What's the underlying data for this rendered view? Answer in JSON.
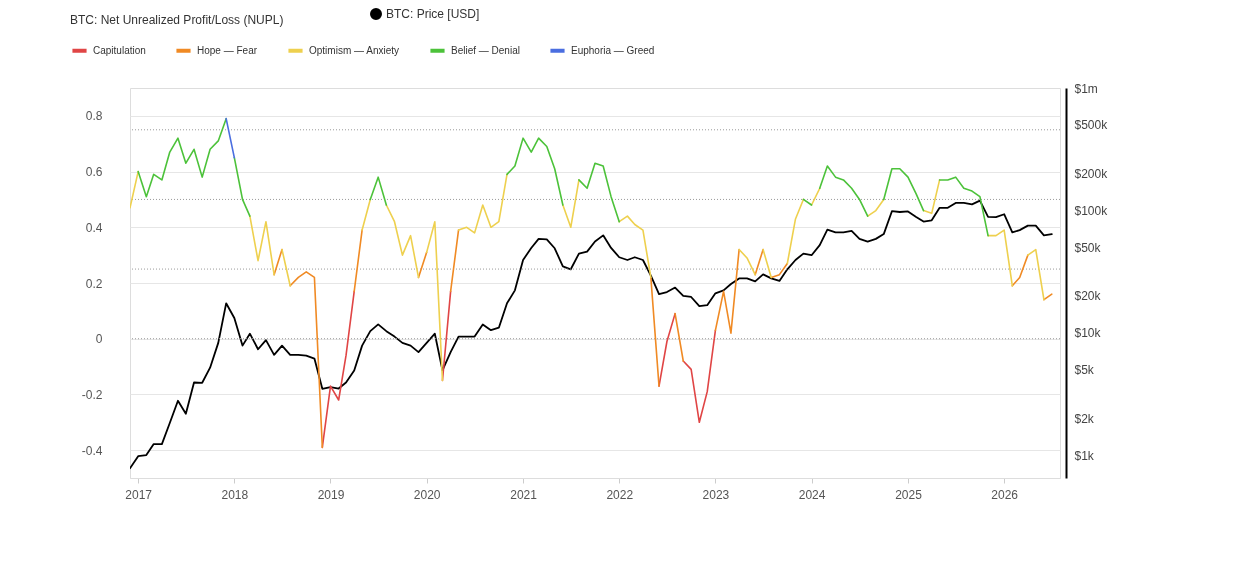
{
  "chart_data": {
    "type": "line",
    "legend_title": "BTC: Net Unrealized Profit/Loss (NUPL)",
    "x": [
      "2016-12",
      "2017-01",
      "2017-02",
      "2017-03",
      "2017-04",
      "2017-05",
      "2017-06",
      "2017-07",
      "2017-08",
      "2017-09",
      "2017-10",
      "2017-11",
      "2017-12",
      "2018-01",
      "2018-02",
      "2018-03",
      "2018-04",
      "2018-05",
      "2018-06",
      "2018-07",
      "2018-08",
      "2018-09",
      "2018-10",
      "2018-11",
      "2018-12",
      "2019-01",
      "2019-02",
      "2019-03",
      "2019-04",
      "2019-05",
      "2019-06",
      "2019-07",
      "2019-08",
      "2019-09",
      "2019-10",
      "2019-11",
      "2019-12",
      "2020-01",
      "2020-02",
      "2020-03",
      "2020-04",
      "2020-05",
      "2020-06",
      "2020-07",
      "2020-08",
      "2020-09",
      "2020-10",
      "2020-11",
      "2020-12",
      "2021-01",
      "2021-02",
      "2021-03",
      "2021-04",
      "2021-05",
      "2021-06",
      "2021-07",
      "2021-08",
      "2021-09",
      "2021-10",
      "2021-11",
      "2021-12",
      "2022-01",
      "2022-02",
      "2022-03",
      "2022-04",
      "2022-05",
      "2022-06",
      "2022-07",
      "2022-08",
      "2022-09",
      "2022-10",
      "2022-11",
      "2022-12",
      "2023-01",
      "2023-02",
      "2023-03",
      "2023-04",
      "2023-05",
      "2023-06",
      "2023-07",
      "2023-08",
      "2023-09",
      "2023-10",
      "2023-11",
      "2023-12",
      "2024-01",
      "2024-02",
      "2024-03",
      "2024-04",
      "2024-05",
      "2024-06",
      "2024-07",
      "2024-08",
      "2024-09",
      "2024-10",
      "2024-11",
      "2024-12",
      "2025-01",
      "2025-02",
      "2025-03",
      "2025-04",
      "2025-05",
      "2025-06",
      "2025-07",
      "2025-08",
      "2025-09",
      "2025-10",
      "2025-11",
      "2025-12",
      "2026-01",
      "2026-02",
      "2026-03",
      "2026-04",
      "2026-05",
      "2026-06",
      "2026-07"
    ],
    "series": [
      {
        "name": "Capitulation",
        "color": "#e04545",
        "x": [
          "2018-12",
          "2019-01",
          "2019-02",
          "2019-03",
          "2019-04",
          null,
          "2020-03",
          "2020-04",
          null,
          "2022-06",
          "2022-07",
          "2022-08",
          null,
          "2022-09",
          "2022-10",
          "2022-11",
          "2022-12",
          "2023-01"
        ],
        "values": [
          -0.39,
          -0.17,
          -0.22,
          -0.06,
          0.17,
          null,
          -0.15,
          0.17,
          null,
          -0.17,
          -0.01,
          0.09,
          null,
          -0.08,
          -0.11,
          -0.3,
          -0.19,
          0.03
        ]
      },
      {
        "name": "Hope — Fear",
        "color": "#f08a24",
        "x": [
          "2018-06",
          "2018-07",
          null,
          "2018-08",
          "2018-09",
          "2018-10",
          "2018-11",
          "2018-12",
          null,
          "2019-04",
          "2019-05",
          null,
          "2019-12",
          "2020-01",
          null,
          "2020-04",
          "2020-05",
          null,
          "2022-05",
          "2022-06",
          null,
          "2022-08",
          "2022-09",
          null,
          "2023-01",
          "2023-02",
          "2023-03",
          "2023-04",
          null,
          "2023-06",
          "2023-07",
          null,
          "2023-08",
          "2023-09",
          "2023-10",
          null,
          "2026-02",
          "2026-03",
          "2026-04",
          null,
          "2026-06",
          "2026-07"
        ],
        "values": [
          0.23,
          0.32,
          null,
          0.19,
          0.22,
          0.24,
          0.22,
          -0.39,
          null,
          0.17,
          0.39,
          null,
          0.22,
          0.31,
          null,
          0.17,
          0.39,
          null,
          0.22,
          -0.17,
          null,
          0.09,
          -0.08,
          null,
          0.03,
          0.17,
          0.02,
          0.32,
          null,
          0.23,
          0.32,
          null,
          0.22,
          0.23,
          0.27,
          null,
          0.19,
          0.22,
          0.3,
          null,
          0.14,
          0.16
        ]
      },
      {
        "name": "Optimism — Anxiety",
        "color": "#eed04e",
        "x": [
          "2016-12",
          "2017-01",
          null,
          "2018-03",
          "2018-04",
          "2018-05",
          "2018-06",
          null,
          "2018-07",
          "2018-08",
          null,
          "2019-05",
          "2019-06",
          null,
          "2019-08",
          "2019-09",
          "2019-10",
          "2019-11",
          "2019-12",
          null,
          "2020-01",
          "2020-02",
          "2020-03",
          null,
          "2020-05",
          "2020-06",
          "2020-07",
          "2020-08",
          "2020-09",
          "2020-10",
          "2020-11",
          null,
          "2021-06",
          "2021-07",
          "2021-08",
          null,
          "2022-01",
          "2022-02",
          "2022-03",
          "2022-04",
          "2022-05",
          null,
          "2023-04",
          "2023-05",
          "2023-06",
          null,
          "2023-07",
          "2023-08",
          null,
          "2023-10",
          "2023-11",
          "2023-12",
          null,
          "2024-01",
          "2024-02",
          null,
          "2024-08",
          "2024-09",
          "2024-10",
          null,
          "2025-03",
          "2025-04",
          "2025-05",
          null,
          "2025-11",
          "2025-12",
          "2026-01",
          "2026-02",
          null,
          "2026-04",
          "2026-05",
          "2026-06"
        ],
        "values": [
          0.47,
          0.6,
          null,
          0.44,
          0.28,
          0.42,
          0.23,
          null,
          0.32,
          0.19,
          null,
          0.39,
          0.5,
          null,
          0.48,
          0.42,
          0.3,
          0.37,
          0.22,
          null,
          0.31,
          0.42,
          -0.15,
          null,
          0.39,
          0.4,
          0.38,
          0.48,
          0.4,
          0.42,
          0.59,
          null,
          0.48,
          0.4,
          0.57,
          null,
          0.42,
          0.44,
          0.41,
          0.39,
          0.22,
          null,
          0.32,
          0.29,
          0.23,
          null,
          0.32,
          0.22,
          null,
          0.27,
          0.43,
          0.5,
          null,
          0.48,
          0.54,
          null,
          0.44,
          0.46,
          0.5,
          null,
          0.46,
          0.45,
          0.57,
          null,
          0.37,
          0.37,
          0.39,
          0.19,
          null,
          0.3,
          0.32,
          0.14
        ]
      },
      {
        "name": "Belief — Denial",
        "color": "#4cc23a",
        "x": [
          "2017-01",
          "2017-02",
          "2017-03",
          "2017-04",
          "2017-05",
          "2017-06",
          "2017-07",
          "2017-08",
          "2017-09",
          "2017-10",
          "2017-11",
          "2017-12",
          null,
          "2018-01",
          "2018-02",
          "2018-03",
          null,
          "2019-06",
          "2019-07",
          "2019-08",
          null,
          "2020-11",
          "2020-12",
          "2021-01",
          "2021-02",
          "2021-03",
          "2021-04",
          "2021-05",
          "2021-06",
          null,
          "2021-08",
          "2021-09",
          "2021-10",
          "2021-11",
          "2021-12",
          "2022-01",
          null,
          "2023-12",
          "2024-01",
          null,
          "2024-02",
          "2024-03",
          "2024-04",
          "2024-05",
          "2024-06",
          "2024-07",
          "2024-08",
          null,
          "2024-10",
          "2024-11",
          "2024-12",
          "2025-01",
          "2025-02",
          "2025-03",
          null,
          "2025-05",
          "2025-06",
          "2025-07",
          "2025-08",
          "2025-09",
          "2025-10",
          "2025-11"
        ],
        "values": [
          0.6,
          0.51,
          0.59,
          0.57,
          0.67,
          0.72,
          0.63,
          0.68,
          0.58,
          0.68,
          0.71,
          0.79,
          null,
          0.65,
          0.5,
          0.44,
          null,
          0.5,
          0.58,
          0.48,
          null,
          0.59,
          0.62,
          0.72,
          0.67,
          0.72,
          0.69,
          0.61,
          0.48,
          null,
          0.57,
          0.54,
          0.63,
          0.62,
          0.51,
          0.42,
          null,
          0.5,
          0.48,
          null,
          0.54,
          0.62,
          0.58,
          0.57,
          0.54,
          0.5,
          0.44,
          null,
          0.5,
          0.61,
          0.61,
          0.58,
          0.52,
          0.46,
          null,
          0.57,
          0.57,
          0.58,
          0.54,
          0.53,
          0.51,
          0.37
        ]
      },
      {
        "name": "Euphoria — Greed",
        "color": "#4a6ee0",
        "x": [
          "2017-12",
          "2018-01"
        ],
        "values": [
          0.79,
          0.65
        ]
      },
      {
        "name": "BTC: Price [USD]",
        "color": "#000000",
        "axis": "y2",
        "values": [
          780,
          980,
          1000,
          1230,
          1230,
          1830,
          2780,
          2180,
          3920,
          3900,
          5180,
          8260,
          17400,
          13200,
          7850,
          9820,
          7330,
          8700,
          6600,
          7850,
          6600,
          6600,
          6500,
          6150,
          3480,
          3600,
          3500,
          3920,
          4920,
          7850,
          10300,
          11700,
          10300,
          9300,
          8260,
          7850,
          6950,
          8260,
          9820,
          4920,
          6950,
          9300,
          9300,
          9300,
          11700,
          10500,
          11000,
          17400,
          22200,
          39300,
          49300,
          58500,
          58000,
          49000,
          34800,
          33000,
          44300,
          46000,
          55600,
          62500,
          49300,
          41400,
          39300,
          41400,
          39300,
          29300,
          20700,
          21500,
          23400,
          20000,
          19600,
          16500,
          16800,
          21000,
          22200,
          25000,
          27800,
          27800,
          26300,
          30000,
          27800,
          26500,
          33000,
          39300,
          44300,
          43000,
          52000,
          69600,
          66000,
          66000,
          68000,
          58500,
          55600,
          58500,
          64000,
          98400,
          97000,
          98000,
          88400,
          81000,
          83000,
          105000,
          105000,
          115000,
          115000,
          112000,
          120000,
          88400,
          88000,
          93000,
          66000,
          69000,
          75000,
          75000,
          62500,
          64000
        ]
      }
    ],
    "xlim": [
      "2016-12-01",
      "2026-08-01"
    ],
    "xticks": [
      "2017",
      "2018",
      "2019",
      "2020",
      "2021",
      "2022",
      "2023",
      "2024",
      "2025",
      "2026"
    ],
    "ylim": [
      -0.5,
      0.9
    ],
    "yticks": [
      -0.4,
      -0.2,
      0,
      0.2,
      0.4,
      0.6,
      0.8
    ],
    "y2lim": [
      650,
      1000000
    ],
    "y2ticks": [
      {
        "value": 1000,
        "label": "$1k"
      },
      {
        "value": 2000,
        "label": "$2k"
      },
      {
        "value": 5000,
        "label": "$5k"
      },
      {
        "value": 10000,
        "label": "$10k"
      },
      {
        "value": 20000,
        "label": "$20k"
      },
      {
        "value": 50000,
        "label": "$50k"
      },
      {
        "value": 100000,
        "label": "$100k"
      },
      {
        "value": 200000,
        "label": "$200k"
      },
      {
        "value": 500000,
        "label": "$500k"
      },
      {
        "value": 1000000,
        "label": "$1m"
      }
    ],
    "log": "y2",
    "ref_lines": [
      {
        "axis": "y",
        "value": 0,
        "color": "#9a9a9a",
        "line_style": "dotted"
      },
      {
        "axis": "y",
        "value": 0.25,
        "color": "#9a9a9a",
        "line_style": "dotted"
      },
      {
        "axis": "y",
        "value": 0.5,
        "color": "#9a9a9a",
        "line_style": "dotted"
      },
      {
        "axis": "y",
        "value": 0.75,
        "color": "#9a9a9a",
        "line_style": "dotted"
      }
    ],
    "grid": "y",
    "legend": "top left"
  }
}
